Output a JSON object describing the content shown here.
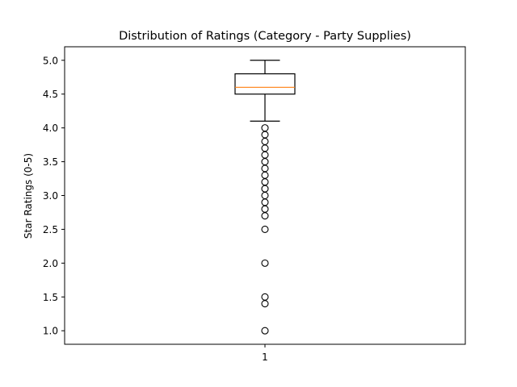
{
  "chart_data": {
    "type": "box",
    "title": "Distribution of Ratings (Category - Party Supplies)",
    "xlabel": "",
    "ylabel": "Star Ratings (0-5)",
    "ylim": [
      0.8,
      5.2
    ],
    "y_ticks": [
      1.0,
      1.5,
      2.0,
      2.5,
      3.0,
      3.5,
      4.0,
      4.5,
      5.0
    ],
    "y_tick_labels": [
      "1.0",
      "1.5",
      "2.0",
      "2.5",
      "3.0",
      "3.5",
      "4.0",
      "4.5",
      "5.0"
    ],
    "categories": [
      "1"
    ],
    "grid": false,
    "box": {
      "whisker_low": 4.1,
      "q1": 4.5,
      "median": 4.6,
      "q3": 4.8,
      "whisker_high": 5.0
    },
    "outliers": [
      4.0,
      3.9,
      3.8,
      3.7,
      3.6,
      3.5,
      3.4,
      3.3,
      3.2,
      3.1,
      3.0,
      2.9,
      2.8,
      2.7,
      2.5,
      2.0,
      1.5,
      1.4,
      1.0
    ],
    "colors": {
      "box": "#000000",
      "median": "#ff7f0e",
      "whisker": "#000000",
      "outlier": "#000000"
    }
  }
}
